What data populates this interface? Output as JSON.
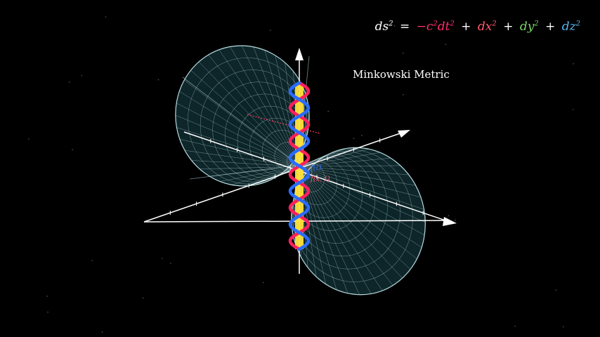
{
  "title": "Minkowski Metric",
  "formula": {
    "lhs": "ds",
    "eq": "=",
    "t_term": "−c",
    "t_term_exp1": "2",
    "t_term_dt": "dt",
    "t_term_exp2": "2",
    "x_term": "dx",
    "y_term": "dy",
    "z_term": "dz",
    "exp": "2",
    "plus": "+"
  },
  "colors": {
    "background": "#000000",
    "cone": "#bde4e8",
    "axis": "#ffffff",
    "time_term": "#ff2d6d",
    "x_term": "#ff5a6e",
    "y_term": "#7bd36a",
    "z_term": "#5ab4f0",
    "worldline": "#ffe23a",
    "helix_red": "#ff1f5c",
    "helix_blue": "#2a6cff"
  },
  "labels": {
    "vector_small": "f(t)",
    "vector_small_2": "f(x, t)"
  }
}
